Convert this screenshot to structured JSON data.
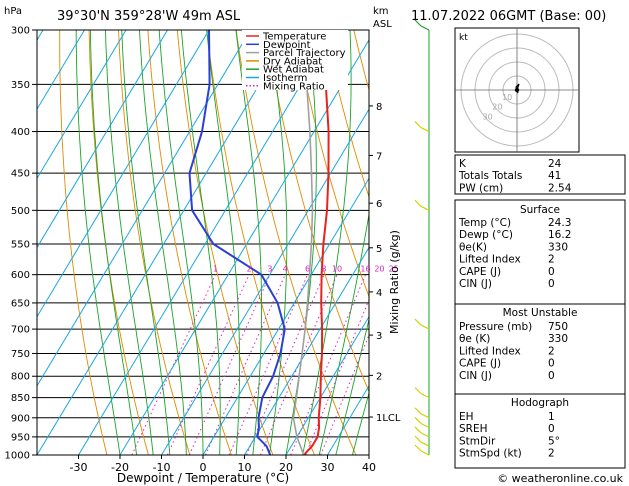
{
  "header": {
    "location": "39°30'N  359°28'W  49m  ASL",
    "datetime": "11.07.2022  06GMT  (Base: 00)",
    "hpa_label": "hPa",
    "km_label": "km",
    "asl_label": "ASL"
  },
  "axes": {
    "xlabel": "Dewpoint / Temperature (°C)",
    "mixing_ratio_label": "Mixing Ratio (g/kg)"
  },
  "legend": [
    {
      "label": "Temperature",
      "color": "#e8231e",
      "dash": "solid"
    },
    {
      "label": "Dewpoint",
      "color": "#2a3fd6",
      "dash": "solid"
    },
    {
      "label": "Parcel Trajectory",
      "color": "#a0a0a0",
      "dash": "solid"
    },
    {
      "label": "Dry Adiabat",
      "color": "#e08a00",
      "dash": "solid"
    },
    {
      "label": "Wet Adiabat",
      "color": "#1aa32a",
      "dash": "solid"
    },
    {
      "label": "Isotherm",
      "color": "#18a8e0",
      "dash": "solid"
    },
    {
      "label": "Mixing Ratio",
      "color": "#e020c0",
      "dash": "dotted"
    }
  ],
  "chart_data": {
    "type": "line",
    "title": "39°30'N  359°28'W  49m  ASL",
    "xlabel": "Dewpoint / Temperature (°C)",
    "ylabel": "hPa",
    "pressure_levels": [
      300,
      350,
      400,
      450,
      500,
      550,
      600,
      650,
      700,
      750,
      800,
      850,
      900,
      950,
      1000
    ],
    "x_ticks": [
      -30,
      -20,
      -10,
      0,
      10,
      20,
      30,
      40
    ],
    "xlim": [
      -40,
      40
    ],
    "ylim": [
      1000,
      300
    ],
    "height_ticks": [
      {
        "label": "8",
        "p": 372
      },
      {
        "label": "7",
        "p": 428
      },
      {
        "label": "6",
        "p": 490
      },
      {
        "label": "5",
        "p": 556
      },
      {
        "label": "4",
        "p": 630
      },
      {
        "label": "3",
        "p": 712
      },
      {
        "label": "2",
        "p": 798
      },
      {
        "label": "1LCL",
        "p": 898
      }
    ],
    "mixing_ratio_labels": [
      "1",
      "2",
      "3",
      "4",
      "6",
      "8",
      "10",
      "16",
      "20",
      "25"
    ],
    "series": [
      {
        "name": "Temperature",
        "color": "#e8231e",
        "points": [
          [
            1000,
            24.3
          ],
          [
            975,
            25.0
          ],
          [
            950,
            25.0
          ],
          [
            925,
            24.0
          ],
          [
            900,
            22.5
          ],
          [
            850,
            20.0
          ],
          [
            800,
            17.0
          ],
          [
            750,
            14.0
          ],
          [
            700,
            10.5
          ],
          [
            650,
            6.5
          ],
          [
            600,
            2.5
          ],
          [
            550,
            -1.5
          ],
          [
            500,
            -5.5
          ],
          [
            450,
            -10.5
          ],
          [
            400,
            -16.5
          ],
          [
            350,
            -24.0
          ],
          [
            300,
            -32.5
          ]
        ]
      },
      {
        "name": "Dewpoint",
        "color": "#2a3fd6",
        "points": [
          [
            1000,
            16.2
          ],
          [
            975,
            14.0
          ],
          [
            950,
            10.5
          ],
          [
            925,
            9.5
          ],
          [
            900,
            8.0
          ],
          [
            850,
            6.0
          ],
          [
            800,
            5.5
          ],
          [
            750,
            4.0
          ],
          [
            700,
            1.5
          ],
          [
            650,
            -4.0
          ],
          [
            600,
            -12.0
          ],
          [
            550,
            -28.0
          ],
          [
            500,
            -38.0
          ],
          [
            450,
            -44.0
          ],
          [
            400,
            -47.0
          ],
          [
            350,
            -52.0
          ],
          [
            300,
            -60.0
          ]
        ]
      },
      {
        "name": "Parcel Trajectory",
        "color": "#a0a0a0",
        "points": [
          [
            1000,
            24.3
          ],
          [
            950,
            20.0
          ],
          [
            900,
            16.4
          ],
          [
            850,
            14.2
          ],
          [
            800,
            11.8
          ],
          [
            750,
            9.2
          ],
          [
            700,
            6.4
          ],
          [
            650,
            3.2
          ],
          [
            600,
            -0.4
          ],
          [
            550,
            -4.4
          ],
          [
            500,
            -9.0
          ],
          [
            450,
            -14.6
          ],
          [
            400,
            -21.0
          ],
          [
            350,
            -28.6
          ],
          [
            300,
            -37.5
          ]
        ]
      }
    ],
    "wind_barbs": [
      300,
      400,
      500,
      700,
      850,
      900,
      925,
      950,
      975,
      1000
    ]
  },
  "hodograph": {
    "unit": "kt",
    "ring_labels": [
      "10",
      "20",
      "30"
    ]
  },
  "indices": {
    "k": {
      "label": "K",
      "value": "24"
    },
    "tt": {
      "label": "Totals Totals",
      "value": "41"
    },
    "pw": {
      "label": "PW (cm)",
      "value": "2.54"
    }
  },
  "surface": {
    "title": "Surface",
    "rows": [
      {
        "label": "Temp (°C)",
        "value": "24.3"
      },
      {
        "label": "Dewp (°C)",
        "value": "16.2"
      },
      {
        "label": "θe(K)",
        "value": "330"
      },
      {
        "label": "Lifted Index",
        "value": "2"
      },
      {
        "label": "CAPE (J)",
        "value": "0"
      },
      {
        "label": "CIN (J)",
        "value": "0"
      }
    ]
  },
  "most_unstable": {
    "title": "Most Unstable",
    "rows": [
      {
        "label": "Pressure (mb)",
        "value": "750"
      },
      {
        "label": "θe (K)",
        "value": "330"
      },
      {
        "label": "Lifted Index",
        "value": "2"
      },
      {
        "label": "CAPE (J)",
        "value": "0"
      },
      {
        "label": "CIN (J)",
        "value": "0"
      }
    ]
  },
  "hodograph_table": {
    "title": "Hodograph",
    "rows": [
      {
        "label": "EH",
        "value": "1"
      },
      {
        "label": "SREH",
        "value": "0"
      },
      {
        "label": "StmDir",
        "value": "5°"
      },
      {
        "label": "StmSpd (kt)",
        "value": "2"
      }
    ]
  },
  "footer": {
    "copyright": "© weatheronline.co.uk"
  }
}
